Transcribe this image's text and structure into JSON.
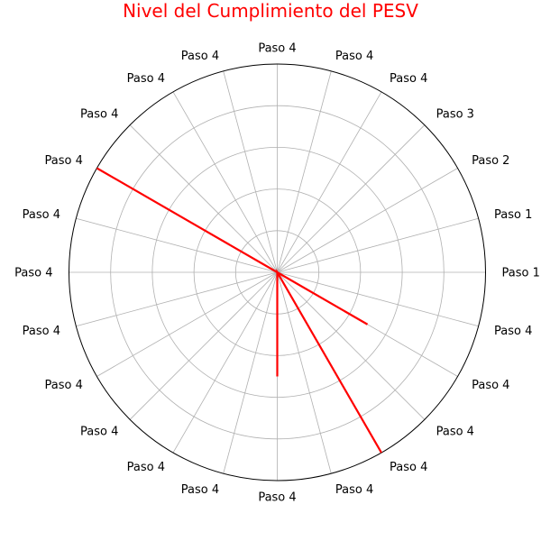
{
  "chart_data": {
    "type": "polar",
    "title": "Nivel del Cumplimiento del PESV",
    "categories": [
      "Paso 1",
      "Paso 1",
      "Paso 2",
      "Paso 3",
      "Paso 4",
      "Paso 4",
      "Paso 4",
      "Paso 4",
      "Paso 4",
      "Paso 4",
      "Paso 4",
      "Paso 4",
      "Paso 4",
      "Paso 4",
      "Paso 4",
      "Paso 4",
      "Paso 4",
      "Paso 4",
      "Paso 4",
      "Paso 4",
      "Paso 4",
      "Paso 4",
      "Paso 4",
      "Paso 4"
    ],
    "series": [
      {
        "values": [
          0,
          0,
          0,
          0,
          0,
          0,
          0,
          0,
          0,
          0,
          1.0,
          0,
          0,
          0,
          0,
          0,
          0,
          0,
          0.5,
          0,
          1.0,
          0,
          0.5,
          0
        ]
      }
    ],
    "rlim": [
      0,
      1.0
    ],
    "rgrid": [
      0.2,
      0.4,
      0.6,
      0.8
    ],
    "grid": true,
    "colors": {
      "title": "#ff0000",
      "series": "#ff0000",
      "grid": "#b0b0b0",
      "frame": "#000000"
    }
  }
}
